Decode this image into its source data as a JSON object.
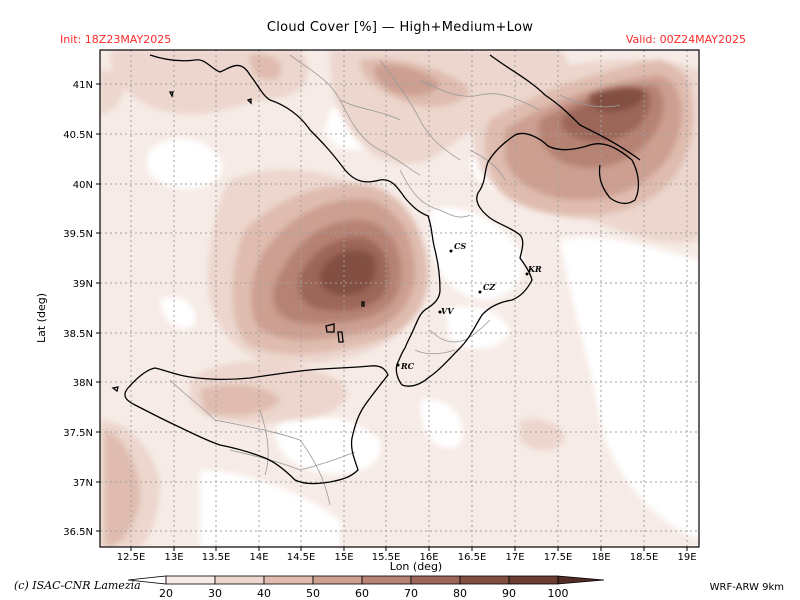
{
  "title": "Cloud Cover [%] — High+Medium+Low",
  "init_label": "Init: 18Z23MAY2025",
  "valid_label": "Valid: 00Z24MAY2025",
  "copyright": "(c) ISAC-CNR Lamezia",
  "model": "WRF-ARW 9km",
  "axes": {
    "xlabel": "Lon (deg)",
    "ylabel": "Lat (deg)",
    "xticks": [
      "12.5E",
      "13E",
      "13.5E",
      "14E",
      "14.5E",
      "15E",
      "15.5E",
      "16E",
      "16.5E",
      "17E",
      "17.5E",
      "18E",
      "18.5E",
      "19E"
    ],
    "yticks": [
      "41N",
      "40.5N",
      "40N",
      "39.5N",
      "39N",
      "38.5N",
      "38N",
      "37.5N",
      "37N",
      "36.5N"
    ]
  },
  "colorbar": {
    "levels": [
      "20",
      "30",
      "40",
      "50",
      "60",
      "70",
      "80",
      "90",
      "100"
    ],
    "colors": [
      "#ffffff",
      "#f6ebe6",
      "#ecd6cd",
      "#dfbcaf",
      "#cc9f91",
      "#b68273",
      "#9c6658",
      "#834f43",
      "#6b3d33",
      "#532c25"
    ]
  },
  "cities": [
    {
      "label": "CS"
    },
    {
      "label": "KR"
    },
    {
      "label": "CZ"
    },
    {
      "label": "VV"
    },
    {
      "label": "RC"
    }
  ],
  "palette": {
    "coast": "#000000",
    "borders": "#9a9a9a",
    "grid": "#a0a0a0",
    "header_red": "#ff2a2a"
  }
}
